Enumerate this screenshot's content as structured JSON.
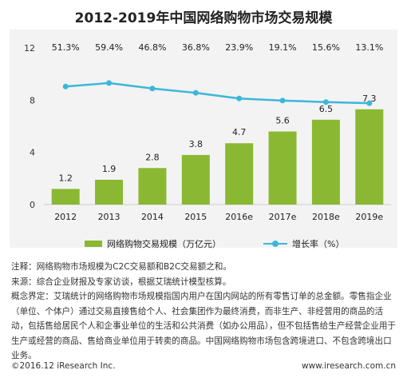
{
  "title": "2012-2019年中国网络购物市场交易规模",
  "chart_data": {
    "type": "bar+line",
    "categories": [
      "2012",
      "2013",
      "2014",
      "2015",
      "2016e",
      "2017e",
      "2018e",
      "2019e"
    ],
    "series": [
      {
        "name": "网络购物交易规模（万亿元）",
        "type": "bar",
        "values": [
          1.2,
          1.9,
          2.8,
          3.8,
          4.7,
          5.6,
          6.5,
          7.3
        ],
        "labels": [
          "1.2",
          "1.9",
          "2.8",
          "3.8",
          "4.7",
          "5.6",
          "6.5",
          "7.3"
        ],
        "color": "#8ab833"
      },
      {
        "name": "增长率（%）",
        "type": "line",
        "values": [
          51.3,
          59.4,
          46.8,
          36.8,
          23.9,
          19.1,
          15.6,
          13.1
        ],
        "labels": [
          "51.3%",
          "59.4%",
          "46.8%",
          "36.8%",
          "23.9%",
          "19.1%",
          "15.6%",
          "13.1%"
        ],
        "color": "#3bb7da"
      }
    ],
    "yticks": [
      "0",
      "4",
      "8",
      "12"
    ],
    "ylim": [
      0,
      12
    ],
    "y2lim": [
      -220,
      140
    ],
    "grid": false,
    "legend_position": "bottom"
  },
  "legend": {
    "bar_label": "网络购物交易规模（万亿元）",
    "line_label": "增长率（%）"
  },
  "notes": [
    "注释：网络购物市场规模为C2C交易额和B2C交易额之和。",
    "来源：综合企业财报及专家访谈，根据艾瑞统计模型核算。",
    "概念界定：艾瑞统计的网络购物市场规模指国内用户在国内网站的所有零售订单的总金额。零售指企业（单位、个体户）通过交易直接售给个人、社会集团作为最终消费，而非生产、非经营用的商品的活动，包括售给居民个人和企事业单位的生活和公共消费（如办公用品），但不包括售给生产经营企业用于生产或经营的商品、售给商业单位用于转卖的商品。中国网络购物市场包含跨境进口、不包含跨境出口业务。"
  ],
  "footer": {
    "copyright": "©2016.12 iResearch Inc.",
    "website": "www.iresearch.com.cn"
  }
}
